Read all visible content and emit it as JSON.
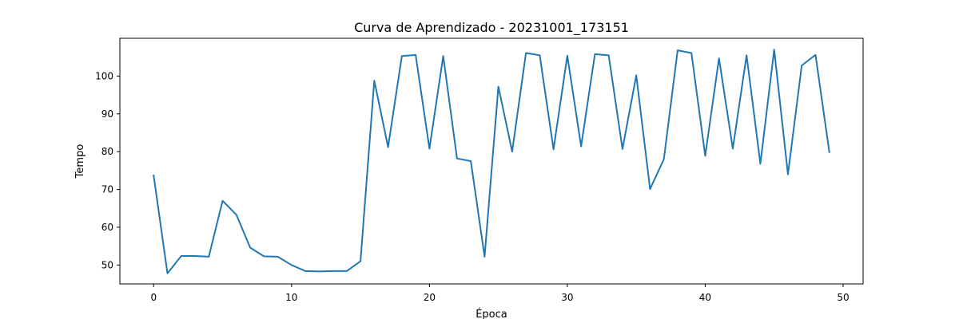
{
  "chart_data": {
    "type": "line",
    "title": "Curva de Aprendizado - 20231001_173151",
    "xlabel": "Época",
    "ylabel": "Tempo",
    "xlim": [
      -2.45,
      51.45
    ],
    "ylim": [
      45,
      110
    ],
    "xticks": [
      0,
      10,
      20,
      30,
      40,
      50
    ],
    "yticks": [
      50,
      60,
      70,
      80,
      90,
      100
    ],
    "grid": false,
    "colors": {
      "series": "#1f77b4"
    },
    "series": [
      {
        "x": [
          0,
          1,
          2,
          3,
          4,
          5,
          6,
          7,
          8,
          9,
          10,
          11,
          12,
          13,
          14,
          15,
          16,
          17,
          18,
          19,
          20,
          21,
          22,
          23,
          24,
          25,
          26,
          27,
          28,
          29,
          30,
          31,
          32,
          33,
          34,
          35,
          36,
          37,
          38,
          39,
          40,
          41,
          42,
          43,
          44,
          45,
          46,
          47,
          48,
          49
        ],
        "values": [
          73.7,
          47.8,
          52.4,
          52.4,
          52.2,
          67.0,
          63.3,
          54.6,
          52.3,
          52.2,
          50.0,
          48.4,
          48.3,
          48.4,
          48.4,
          51.0,
          98.8,
          81.2,
          105.3,
          105.6,
          80.8,
          105.3,
          78.2,
          77.5,
          52.2,
          97.2,
          80.0,
          106.1,
          105.5,
          80.6,
          105.4,
          81.4,
          105.8,
          105.5,
          80.7,
          100.2,
          70.1,
          78.0,
          106.8,
          106.1,
          78.9,
          104.7,
          80.8,
          105.5,
          76.8,
          107.0,
          74.0,
          102.8,
          105.6,
          79.9
        ]
      }
    ]
  }
}
